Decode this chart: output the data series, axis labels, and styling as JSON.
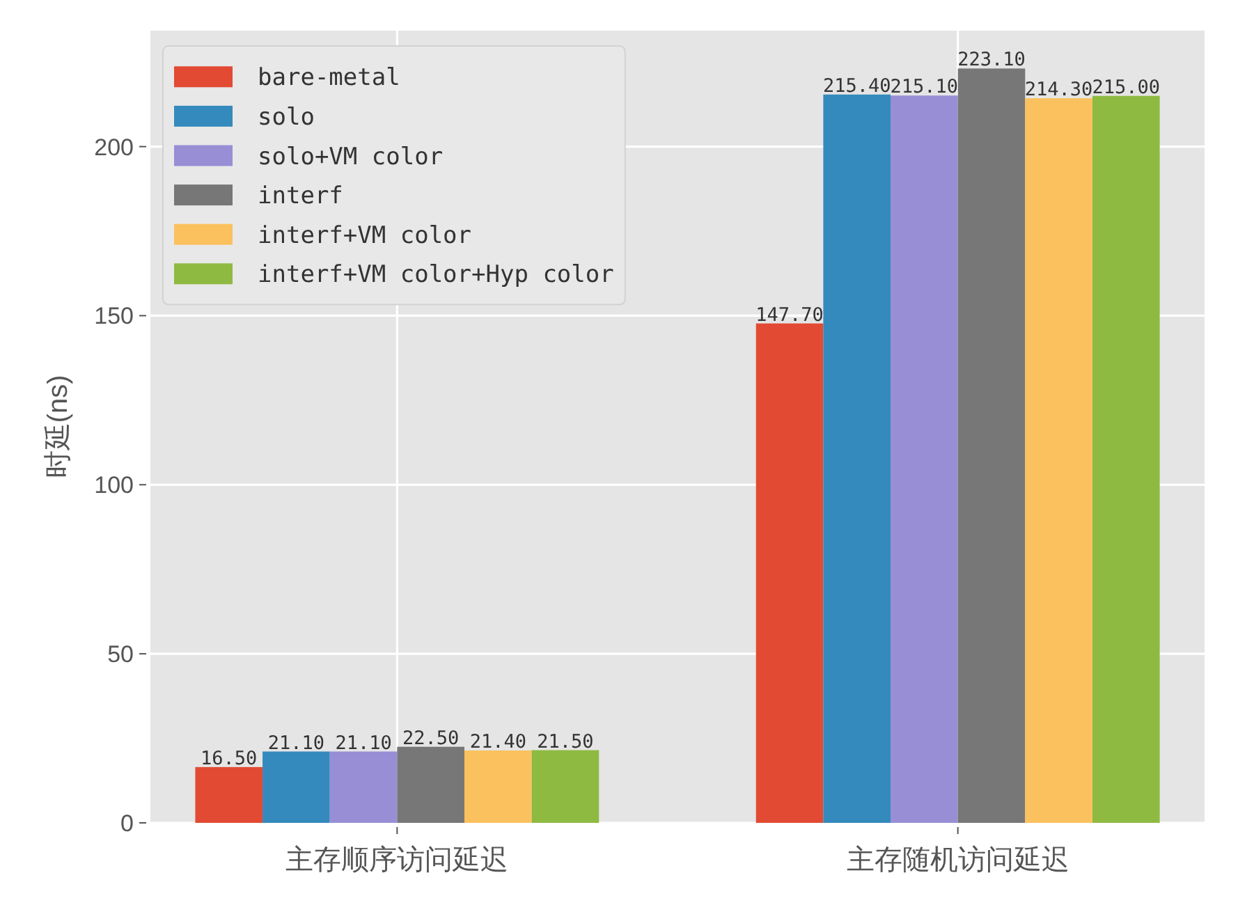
{
  "chart_data": {
    "type": "bar",
    "ylabel": "时延(ns)",
    "categories": [
      "主存顺序访问延迟",
      "主存随机访问延迟"
    ],
    "series": [
      {
        "name": "bare-metal",
        "color": "#e24a33",
        "values": [
          16.5,
          147.7
        ],
        "value_labels": [
          "16.50",
          "147.70"
        ]
      },
      {
        "name": "solo",
        "color": "#348abd",
        "values": [
          21.1,
          215.4
        ],
        "value_labels": [
          "21.10",
          "215.40"
        ]
      },
      {
        "name": "solo+VM color",
        "color": "#988ed5",
        "values": [
          21.1,
          215.1
        ],
        "value_labels": [
          "21.10",
          "215.10"
        ]
      },
      {
        "name": "interf",
        "color": "#777777",
        "values": [
          22.5,
          223.1
        ],
        "value_labels": [
          "22.50",
          "223.10"
        ]
      },
      {
        "name": "interf+VM color",
        "color": "#fbc15e",
        "values": [
          21.4,
          214.3
        ],
        "value_labels": [
          "21.40",
          "214.30"
        ]
      },
      {
        "name": "interf+VM color+Hyp color",
        "color": "#8eba42",
        "values": [
          21.5,
          215.0
        ],
        "value_labels": [
          "21.50",
          "215.00"
        ]
      }
    ],
    "ylim": [
      0,
      234.3
    ],
    "yticks": [
      0,
      50,
      100,
      150,
      200
    ],
    "grid": true,
    "legend": "top left"
  }
}
